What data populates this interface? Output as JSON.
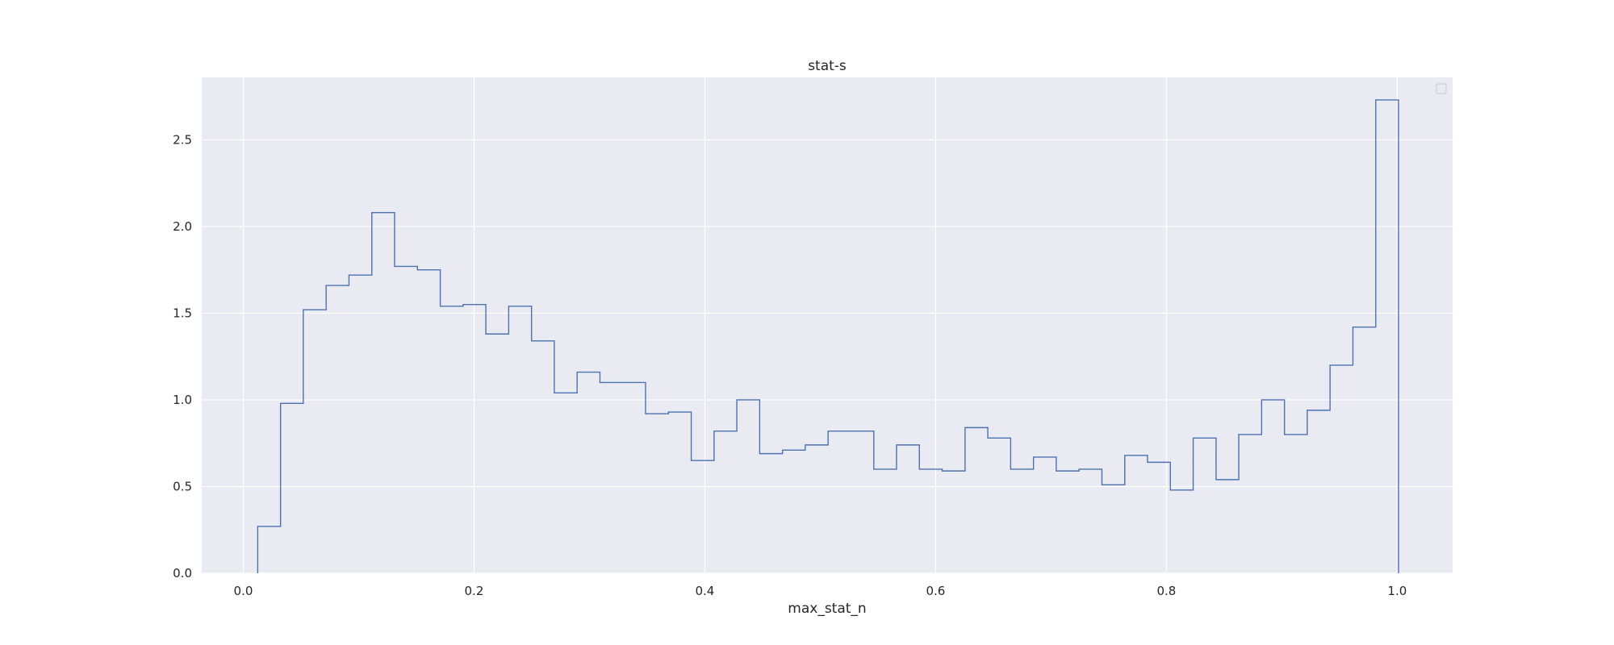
{
  "chart_data": {
    "type": "step",
    "title": "stat-s",
    "xlabel": "max_stat_n",
    "ylabel": "",
    "xlim": [
      -0.036,
      1.048
    ],
    "ylim": [
      0.0,
      2.86
    ],
    "xticks": [
      0.0,
      0.2,
      0.4,
      0.6,
      0.8,
      1.0
    ],
    "xtick_labels": [
      "0.0",
      "0.2",
      "0.4",
      "0.6",
      "0.8",
      "1.0"
    ],
    "yticks": [
      0.0,
      0.5,
      1.0,
      1.5,
      2.0,
      2.5
    ],
    "ytick_labels": [
      "0.0",
      "0.5",
      "1.0",
      "1.5",
      "2.0",
      "2.5"
    ],
    "grid": true,
    "legend": "top-right (empty)",
    "series": [
      {
        "color": "#4c72b0",
        "bin_edges": [
          0.0125,
          0.0323,
          0.052,
          0.0718,
          0.0916,
          0.1114,
          0.1311,
          0.1509,
          0.1707,
          0.1905,
          0.2102,
          0.23,
          0.2498,
          0.2695,
          0.2893,
          0.3091,
          0.3289,
          0.3486,
          0.3684,
          0.3882,
          0.408,
          0.4277,
          0.4475,
          0.4673,
          0.487,
          0.5068,
          0.5266,
          0.5464,
          0.5661,
          0.5859,
          0.6057,
          0.6255,
          0.6452,
          0.665,
          0.6848,
          0.7045,
          0.7243,
          0.7441,
          0.7639,
          0.7836,
          0.8034,
          0.8232,
          0.843,
          0.8627,
          0.8825,
          0.9023,
          0.922,
          0.9418,
          0.9616,
          0.9814,
          1.0011
        ],
        "values": [
          0.27,
          0.98,
          1.52,
          1.66,
          1.72,
          2.08,
          1.77,
          1.75,
          1.54,
          1.55,
          1.38,
          1.54,
          1.34,
          1.04,
          1.16,
          1.1,
          1.1,
          0.92,
          0.93,
          0.65,
          0.82,
          1.0,
          0.69,
          0.71,
          0.74,
          0.82,
          0.82,
          0.6,
          0.74,
          0.6,
          0.59,
          0.84,
          0.78,
          0.6,
          0.67,
          0.59,
          0.6,
          0.51,
          0.68,
          0.64,
          0.48,
          0.78,
          0.54,
          0.8,
          1.0,
          0.8,
          0.94,
          1.2,
          1.42,
          2.73
        ]
      }
    ]
  }
}
